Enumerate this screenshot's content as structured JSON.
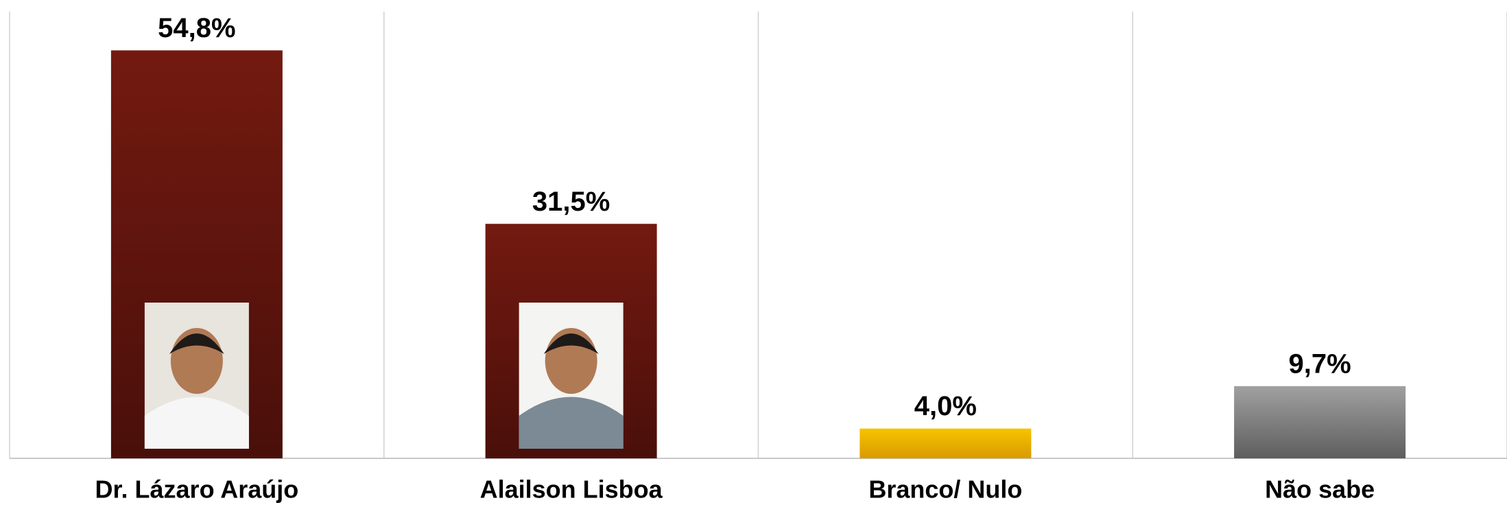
{
  "chart_data": {
    "type": "bar",
    "categories": [
      "Dr. Lázaro Araújo",
      "Alailson Lisboa",
      "Branco/ Nulo",
      "Não sabe"
    ],
    "values": [
      54.8,
      31.5,
      4.0,
      9.7
    ],
    "value_labels": [
      "54,8%",
      "31,5%",
      "4,0%",
      "9,7%"
    ],
    "colors": [
      "#6e1a10",
      "#6e1a10",
      "#f2b800",
      "#8a8a8a"
    ],
    "ylim": [
      0,
      60
    ]
  }
}
